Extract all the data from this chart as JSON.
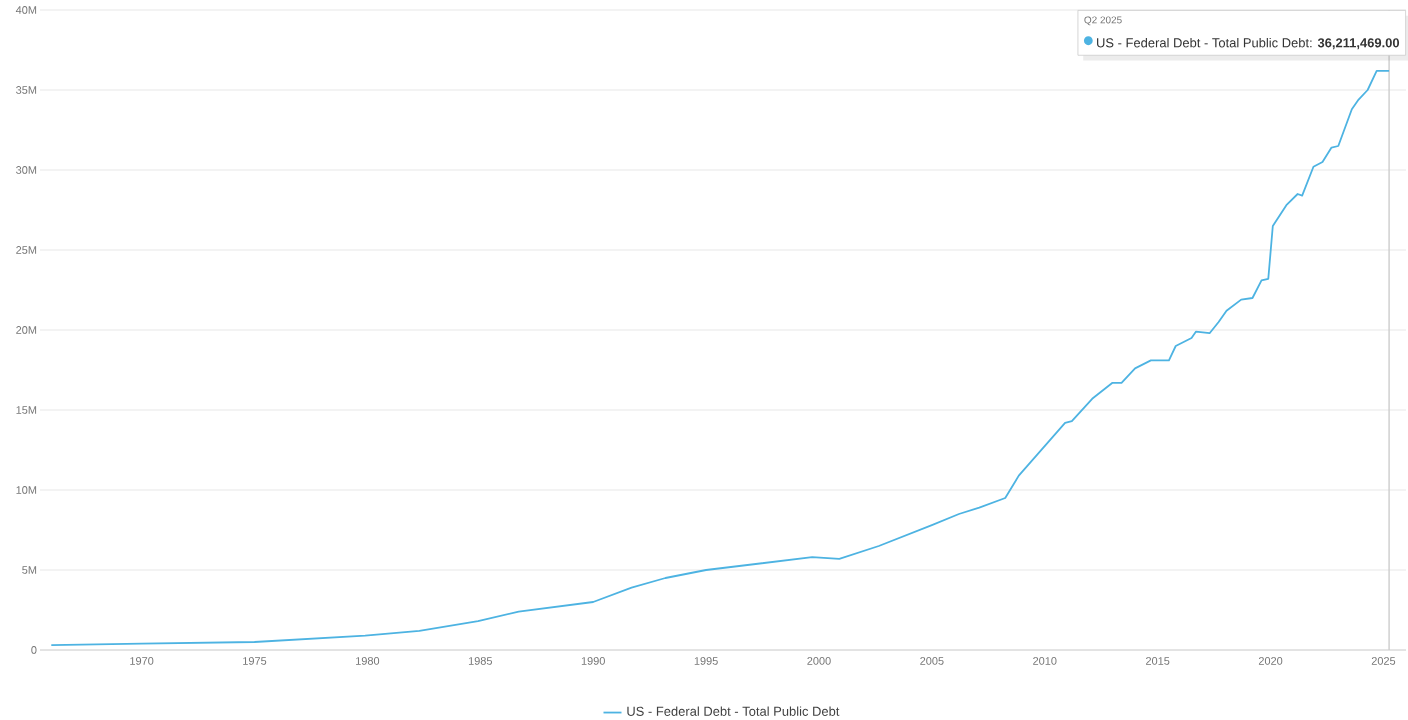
{
  "chart_data": {
    "type": "line",
    "x": [
      1966.0,
      1970.0,
      1975.0,
      1979.9,
      1982.3,
      1984.9,
      1986.7,
      1990.0,
      1991.7,
      1993.2,
      1995.0,
      1999.7,
      2000.9,
      2002.65,
      2005.0,
      2006.2,
      2007.1,
      2008.25,
      2008.85,
      2010.9,
      2011.2,
      2012.1,
      2013.0,
      2013.4,
      2014.0,
      2014.7,
      2015.5,
      2015.8,
      2016.5,
      2016.7,
      2017.3,
      2017.7,
      2018.05,
      2018.7,
      2019.2,
      2019.6,
      2019.9,
      2020.1,
      2020.7,
      2021.2,
      2021.4,
      2021.9,
      2022.3,
      2022.7,
      2023.0,
      2023.6,
      2023.9,
      2024.3,
      2024.7,
      2025.0,
      2025.25
    ],
    "series": [
      {
        "name": "US - Federal Debt - Total Public Debt",
        "color": "#4db3e2",
        "values": [
          0.3,
          0.4,
          0.5,
          0.9,
          1.2,
          1.8,
          2.4,
          3.0,
          3.9,
          4.5,
          5.0,
          5.8,
          5.7,
          6.5,
          7.8,
          8.5,
          8.9,
          9.5,
          10.9,
          14.2,
          14.3,
          15.7,
          16.7,
          16.7,
          17.6,
          18.1,
          18.1,
          19.0,
          19.5,
          19.9,
          19.8,
          20.5,
          21.2,
          21.9,
          22.0,
          23.1,
          23.2,
          26.5,
          27.8,
          28.5,
          28.4,
          30.2,
          30.5,
          31.4,
          31.5,
          33.8,
          34.4,
          35.0,
          36.2,
          36.2,
          36.2
        ]
      }
    ],
    "xlim": [
      1965.5,
      2026
    ],
    "xticks": [
      1970,
      1975,
      1980,
      1985,
      1990,
      1995,
      2000,
      2005,
      2010,
      2015,
      2020,
      2025
    ],
    "ylim": [
      0,
      40
    ],
    "yticks": [
      0,
      {
        "value": 5,
        "label": "5M"
      },
      {
        "value": 10,
        "label": "10M"
      },
      {
        "value": 15,
        "label": "15M"
      },
      {
        "value": 20,
        "label": "20M"
      },
      {
        "value": 25,
        "label": "25M"
      },
      {
        "value": 30,
        "label": "30M"
      },
      {
        "value": 35,
        "label": "35M"
      },
      {
        "value": 40,
        "label": "40M"
      }
    ],
    "grid": "y",
    "legend": "bottom",
    "marker": "none",
    "line_style": "solid",
    "ref_lines": [
      {
        "axis": "x",
        "value": 2025.25,
        "label": null,
        "color": "#cccccc"
      }
    ],
    "annotations": [
      "Q2 2025",
      "US - Federal Debt - Total Public Debt: **36,211,469.00**"
    ]
  }
}
